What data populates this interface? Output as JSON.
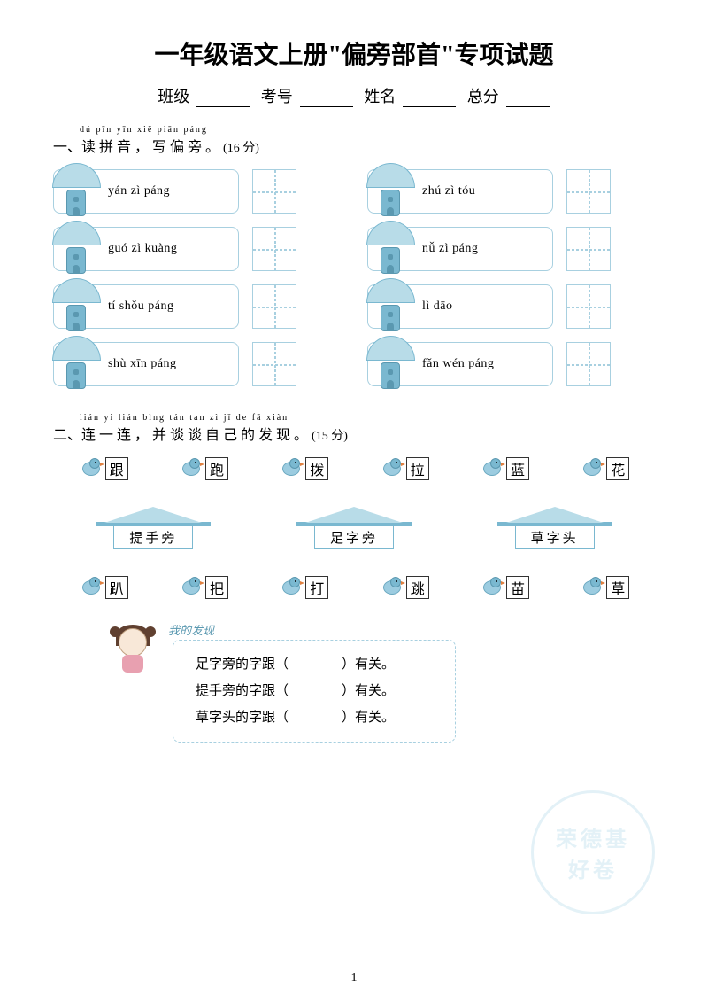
{
  "title": "一年级语文上册\"偏旁部首\"专项试题",
  "form": {
    "class_label": "班级",
    "exam_no_label": "考号",
    "name_label": "姓名",
    "total_label": "总分"
  },
  "section1": {
    "pinyin": "dú pīn yīn    xiě piān páng",
    "number": "一、",
    "text": "读拼音，写偏旁。",
    "points": "(16 分)",
    "items": [
      {
        "label": "yán zì páng"
      },
      {
        "label": "zhú zì tóu"
      },
      {
        "label": "guó zì kuàng"
      },
      {
        "label": "nǚ zì páng"
      },
      {
        "label": "tí shǒu páng"
      },
      {
        "label": "lì dāo"
      },
      {
        "label": "shù xīn páng"
      },
      {
        "label": "fǎn wén páng"
      }
    ]
  },
  "section2": {
    "pinyin": "lián yi lián    bìng tán tan zì  jǐ  de  fā  xiàn",
    "number": "二、",
    "text": "连一连，并谈谈自己的发现。",
    "points": "(15 分)",
    "birds_top": [
      "跟",
      "跑",
      "拨",
      "拉",
      "蓝",
      "花"
    ],
    "houses": [
      "提手旁",
      "足字旁",
      "草字头"
    ],
    "birds_bottom": [
      "趴",
      "把",
      "打",
      "跳",
      "苗",
      "草"
    ],
    "discovery_title": "我的发现",
    "discovery_lines": [
      {
        "prefix": "足字旁的字跟（",
        "suffix": "）有关。"
      },
      {
        "prefix": "提手旁的字跟（",
        "suffix": "）有关。"
      },
      {
        "prefix": "草字头的字跟（",
        "suffix": "）有关。"
      }
    ]
  },
  "watermark": {
    "line1": "荣德基",
    "line2": "好卷"
  },
  "page_number": "1",
  "colors": {
    "mushroom_light": "#b8dce8",
    "mushroom_dark": "#7ab8d0",
    "border": "#a8d0e0"
  }
}
